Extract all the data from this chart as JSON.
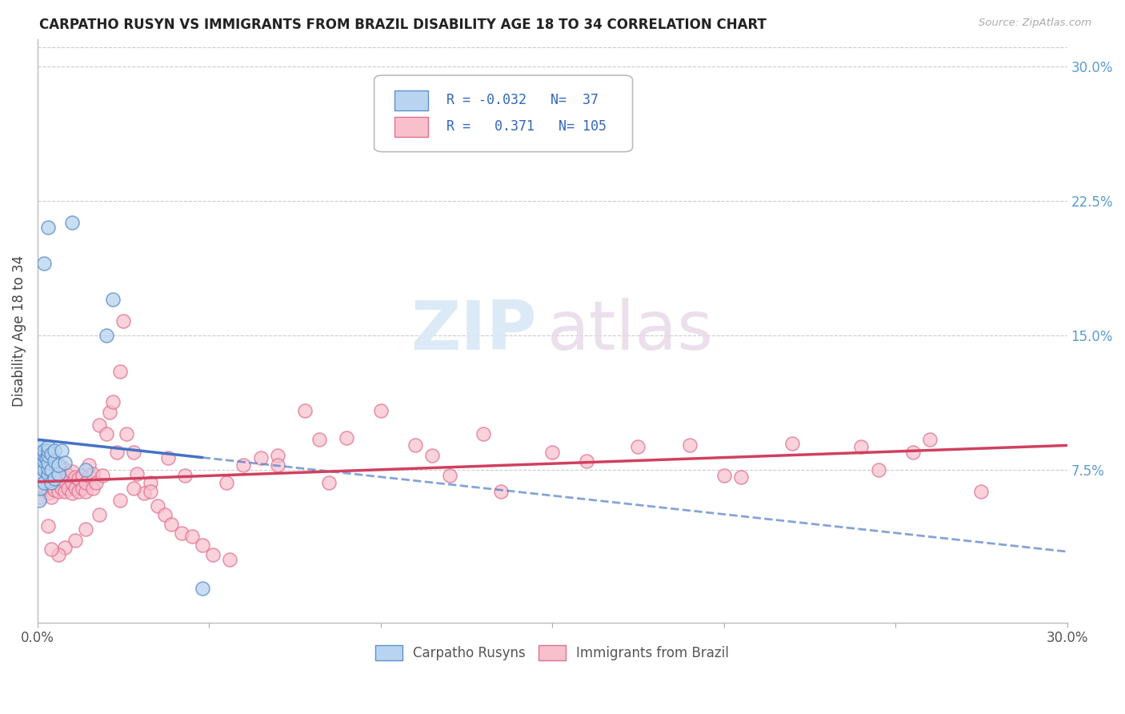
{
  "title": "CARPATHO RUSYN VS IMMIGRANTS FROM BRAZIL DISABILITY AGE 18 TO 34 CORRELATION CHART",
  "source": "Source: ZipAtlas.com",
  "ylabel": "Disability Age 18 to 34",
  "right_ytick_labels": [
    "7.5%",
    "15.0%",
    "22.5%",
    "30.0%"
  ],
  "right_ytick_vals": [
    0.075,
    0.15,
    0.225,
    0.3
  ],
  "legend1_label": "Carpatho Rusyns",
  "legend2_label": "Immigrants from Brazil",
  "R1": "-0.032",
  "N1": "37",
  "R2": "0.371",
  "N2": "105",
  "color_blue_fill": "#B8D4F0",
  "color_blue_edge": "#6090C8",
  "color_pink_fill": "#F8C0CC",
  "color_pink_edge": "#E07090",
  "line_blue": "#4472C4",
  "line_pink": "#D04060",
  "watermark_zip": "ZIP",
  "watermark_atlas": "atlas",
  "xmin": 0.0,
  "xmax": 0.3,
  "ymin": -0.01,
  "ymax": 0.315,
  "blue_x": [
    0.0005,
    0.0008,
    0.001,
    0.001,
    0.001,
    0.001,
    0.0015,
    0.0015,
    0.002,
    0.002,
    0.002,
    0.002,
    0.002,
    0.002,
    0.0025,
    0.003,
    0.003,
    0.003,
    0.003,
    0.003,
    0.003,
    0.003,
    0.004,
    0.004,
    0.004,
    0.005,
    0.005,
    0.005,
    0.006,
    0.006,
    0.007,
    0.008,
    0.01,
    0.014,
    0.02,
    0.022,
    0.048
  ],
  "blue_y": [
    0.058,
    0.065,
    0.078,
    0.082,
    0.085,
    0.088,
    0.072,
    0.076,
    0.068,
    0.075,
    0.08,
    0.083,
    0.086,
    0.19,
    0.082,
    0.073,
    0.076,
    0.079,
    0.083,
    0.086,
    0.088,
    0.21,
    0.068,
    0.075,
    0.084,
    0.07,
    0.08,
    0.086,
    0.073,
    0.078,
    0.086,
    0.079,
    0.213,
    0.075,
    0.15,
    0.17,
    0.009
  ],
  "pink_x": [
    0.001,
    0.001,
    0.001,
    0.002,
    0.002,
    0.002,
    0.002,
    0.003,
    0.003,
    0.003,
    0.003,
    0.004,
    0.004,
    0.004,
    0.004,
    0.005,
    0.005,
    0.005,
    0.005,
    0.006,
    0.006,
    0.007,
    0.007,
    0.007,
    0.008,
    0.008,
    0.008,
    0.009,
    0.009,
    0.01,
    0.01,
    0.01,
    0.011,
    0.011,
    0.012,
    0.012,
    0.013,
    0.013,
    0.014,
    0.014,
    0.015,
    0.015,
    0.016,
    0.016,
    0.017,
    0.018,
    0.019,
    0.02,
    0.021,
    0.022,
    0.023,
    0.024,
    0.025,
    0.026,
    0.028,
    0.029,
    0.031,
    0.033,
    0.035,
    0.037,
    0.039,
    0.042,
    0.045,
    0.048,
    0.051,
    0.056,
    0.06,
    0.065,
    0.07,
    0.078,
    0.082,
    0.09,
    0.1,
    0.11,
    0.12,
    0.135,
    0.15,
    0.16,
    0.175,
    0.19,
    0.205,
    0.22,
    0.24,
    0.26,
    0.275,
    0.245,
    0.255,
    0.2,
    0.13,
    0.115,
    0.085,
    0.07,
    0.055,
    0.043,
    0.038,
    0.033,
    0.028,
    0.024,
    0.018,
    0.014,
    0.011,
    0.008,
    0.006,
    0.004,
    0.003
  ],
  "pink_y": [
    0.06,
    0.07,
    0.08,
    0.065,
    0.072,
    0.078,
    0.084,
    0.062,
    0.068,
    0.073,
    0.079,
    0.06,
    0.066,
    0.071,
    0.078,
    0.064,
    0.069,
    0.074,
    0.08,
    0.063,
    0.07,
    0.065,
    0.071,
    0.077,
    0.063,
    0.069,
    0.075,
    0.065,
    0.072,
    0.062,
    0.068,
    0.074,
    0.065,
    0.071,
    0.063,
    0.07,
    0.065,
    0.072,
    0.063,
    0.068,
    0.072,
    0.078,
    0.065,
    0.073,
    0.068,
    0.1,
    0.072,
    0.095,
    0.107,
    0.113,
    0.085,
    0.13,
    0.158,
    0.095,
    0.085,
    0.073,
    0.062,
    0.068,
    0.055,
    0.05,
    0.045,
    0.04,
    0.038,
    0.033,
    0.028,
    0.025,
    0.078,
    0.082,
    0.083,
    0.108,
    0.092,
    0.093,
    0.108,
    0.089,
    0.072,
    0.063,
    0.085,
    0.08,
    0.088,
    0.089,
    0.071,
    0.09,
    0.088,
    0.092,
    0.063,
    0.075,
    0.085,
    0.072,
    0.095,
    0.083,
    0.068,
    0.078,
    0.068,
    0.072,
    0.082,
    0.063,
    0.065,
    0.058,
    0.05,
    0.042,
    0.036,
    0.032,
    0.028,
    0.031,
    0.044
  ]
}
